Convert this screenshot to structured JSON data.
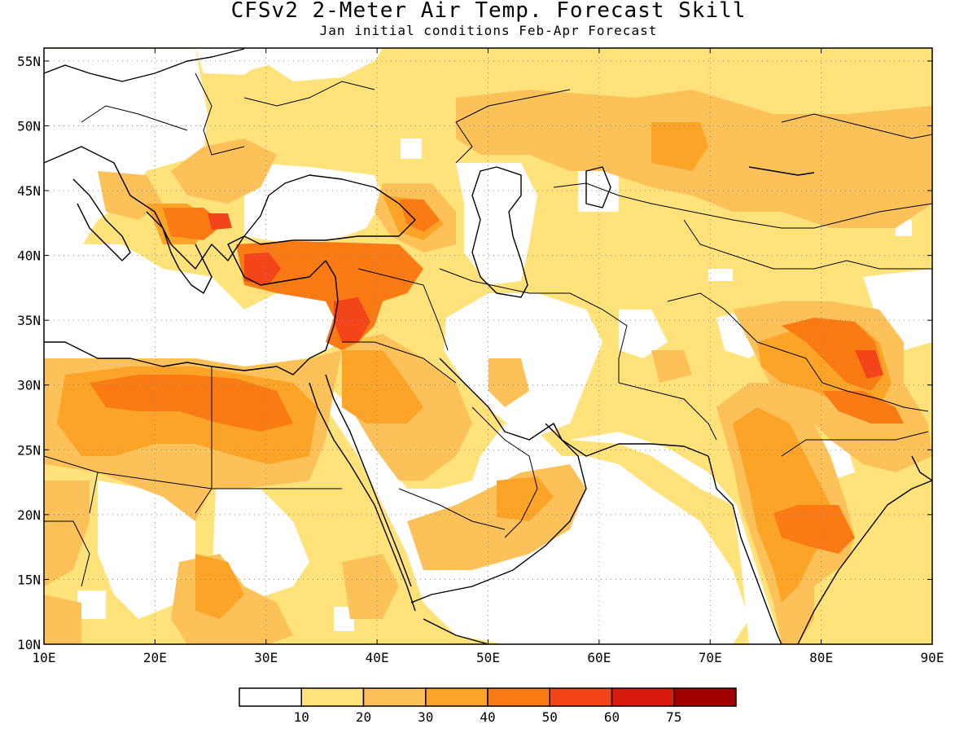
{
  "figure": {
    "title": "CFSv2 2-Meter Air Temp. Forecast Skill",
    "subtitle": "Jan initial conditions   Feb-Apr Forecast"
  },
  "map": {
    "lon_range": [
      10,
      90
    ],
    "lat_range": [
      10,
      56
    ],
    "x_ticks": [
      "10E",
      "20E",
      "30E",
      "40E",
      "50E",
      "60E",
      "70E",
      "80E",
      "90E"
    ],
    "y_ticks": [
      "10N",
      "15N",
      "20N",
      "25N",
      "30N",
      "35N",
      "40N",
      "45N",
      "50N",
      "55N"
    ],
    "grid": "dotted"
  },
  "legend": {
    "bins": [
      {
        "color": "#ffffff"
      },
      {
        "color": "#ffe37a"
      },
      {
        "color": "#fdc15a"
      },
      {
        "color": "#fca428"
      },
      {
        "color": "#fa7a14"
      },
      {
        "color": "#f4441a"
      },
      {
        "color": "#d81a0f"
      },
      {
        "color": "#a00000"
      }
    ],
    "labels": [
      "10",
      "20",
      "30",
      "40",
      "50",
      "60",
      "75"
    ]
  }
}
